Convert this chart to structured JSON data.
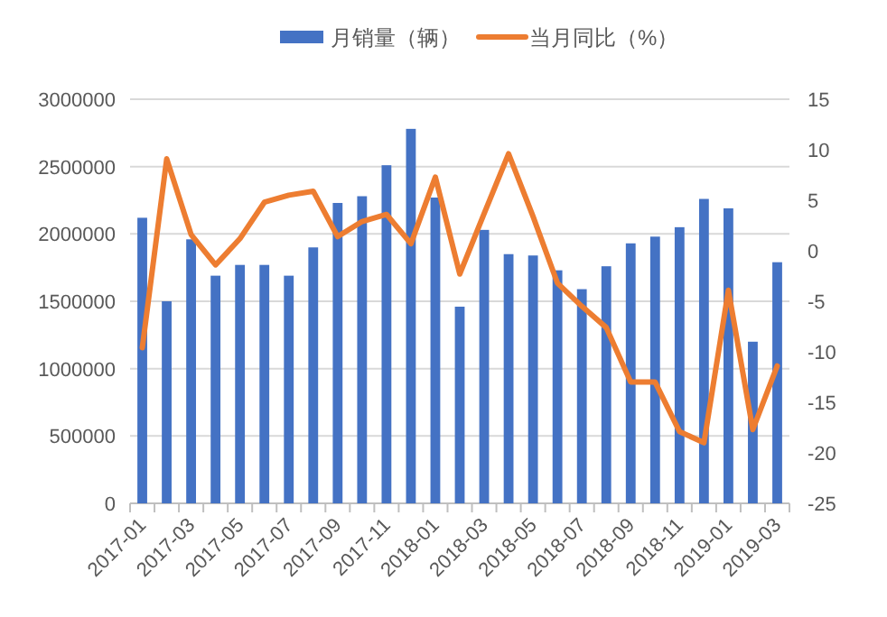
{
  "chart_data": {
    "type": "bar",
    "categories": [
      "2017-01",
      null,
      "2017-03",
      null,
      "2017-05",
      null,
      "2017-07",
      null,
      "2017-09",
      null,
      "2017-11",
      null,
      "2018-01",
      null,
      "2018-03",
      null,
      "2018-05",
      null,
      "2018-07",
      null,
      "2018-09",
      null,
      "2018-11",
      null,
      "2019-01",
      null,
      "2019-03"
    ],
    "series": [
      {
        "name": "月销量（辆）",
        "color": "#4472c4",
        "values": [
          2120000,
          1500000,
          1960000,
          1690000,
          1770000,
          1770000,
          1690000,
          1900000,
          2230000,
          2280000,
          2510000,
          2780000,
          2270000,
          1460000,
          2030000,
          1850000,
          1840000,
          1730000,
          1590000,
          1760000,
          1930000,
          1980000,
          2050000,
          2260000,
          2190000,
          1200000,
          1790000
        ]
      },
      {
        "name": "当月同比（%）",
        "type": "line",
        "axis": "y2",
        "color": "#ed7d31",
        "values": [
          -9.6,
          9.1,
          1.6,
          -1.4,
          1.2,
          4.8,
          5.5,
          5.9,
          1.4,
          2.9,
          3.6,
          0.7,
          7.3,
          -2.3,
          3.7,
          9.6,
          3.4,
          -3.2,
          -5.5,
          -7.6,
          -13,
          -13,
          -17.9,
          -19,
          -3.9,
          -17.7,
          -11.4
        ]
      }
    ],
    "ylim": [
      0,
      3000000
    ],
    "yticks": [
      0,
      500000,
      1000000,
      1500000,
      2000000,
      2500000,
      3000000
    ],
    "y2lim": [
      -25,
      15
    ],
    "y2ticks": [
      -25,
      -20,
      -15,
      -10,
      -5,
      0,
      5,
      10,
      15
    ],
    "grid": "y",
    "legend": "top",
    "marker": "none",
    "line_style": "solid"
  }
}
